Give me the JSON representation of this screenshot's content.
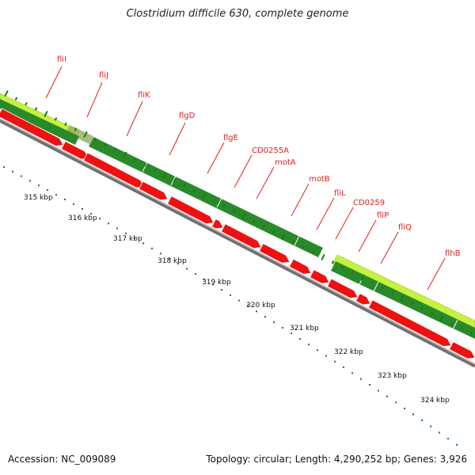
{
  "title": "Clostridium difficile 630, complete genome",
  "footer": {
    "accession": "Accession: NC_009089",
    "stats": "Topology: circular; Length: 4,290,252 bp; Genes: 3,926"
  },
  "colors": {
    "gene_label": "#e02020",
    "cds": "#ee1111",
    "track_dark": "#2a8a2a",
    "track_light": "#c8f040",
    "backbone": "#8a8a8a",
    "tick": "#1a7a1a"
  },
  "gene_labels": [
    "fliI",
    "fliJ",
    "fliK",
    "flgD",
    "flgE",
    "CD0255A",
    "motA",
    "motB",
    "fliL",
    "CD0259",
    "fliP",
    "fliQ",
    "flhB"
  ],
  "scale_labels": [
    "315 kbp",
    "316 kbp",
    "317 kbp",
    "318 kbp",
    "319 kbp",
    "320 kbp",
    "321 kbp",
    "322 kbp",
    "323 kbp",
    "324 kbp"
  ]
}
